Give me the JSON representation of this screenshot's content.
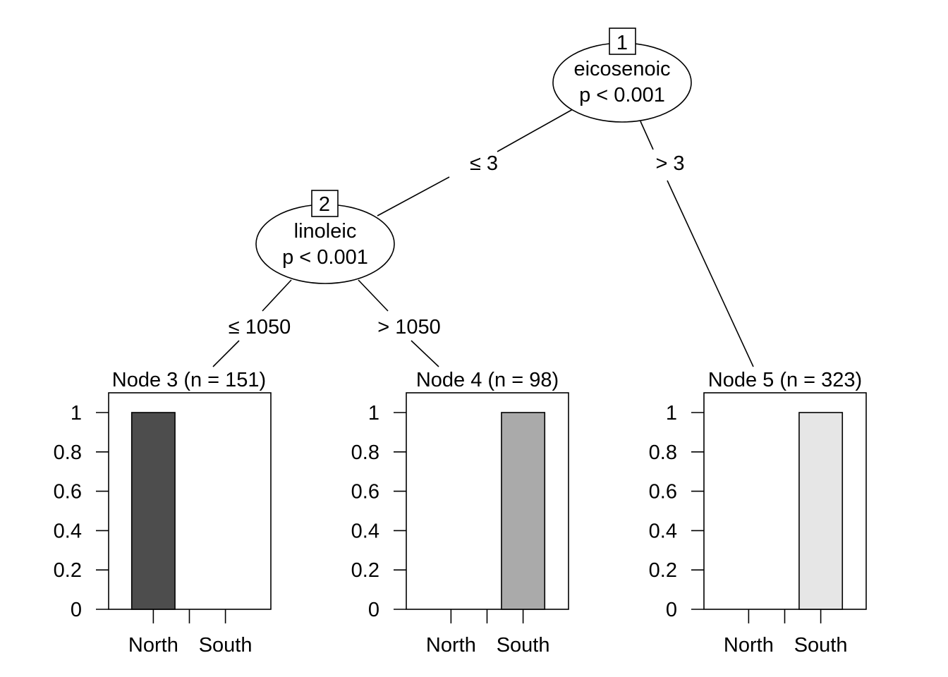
{
  "chart_data": {
    "type": "bar",
    "title": "",
    "ylim": [
      0,
      1
    ],
    "y_ticks": [
      "0",
      "0.2",
      "0.4",
      "0.6",
      "0.8",
      "1"
    ],
    "categories": [
      "North",
      "South"
    ],
    "inner_nodes": [
      {
        "id": "1",
        "variable": "eicosenoic",
        "p_value": "p < 0.001"
      },
      {
        "id": "2",
        "variable": "linoleic",
        "p_value": "p < 0.001"
      }
    ],
    "edges": [
      {
        "from": "1",
        "to": "2",
        "label": "≤ 3"
      },
      {
        "from": "1",
        "to": "5",
        "label": "> 3"
      },
      {
        "from": "2",
        "to": "3",
        "label": "≤ 1050"
      },
      {
        "from": "2",
        "to": "4",
        "label": "> 1050"
      }
    ],
    "terminal_nodes": [
      {
        "id": "3",
        "title": "Node 3 (n = 151)",
        "series": [
          {
            "name": "proportion",
            "values": [
              1,
              0
            ]
          }
        ],
        "bar_color": "#4d4d4d"
      },
      {
        "id": "4",
        "title": "Node 4 (n = 98)",
        "series": [
          {
            "name": "proportion",
            "values": [
              0,
              1
            ]
          }
        ],
        "bar_color": "#aaaaaa"
      },
      {
        "id": "5",
        "title": "Node 5 (n = 323)",
        "series": [
          {
            "name": "proportion",
            "values": [
              0,
              1
            ]
          }
        ],
        "bar_color": "#e6e6e6"
      }
    ]
  }
}
